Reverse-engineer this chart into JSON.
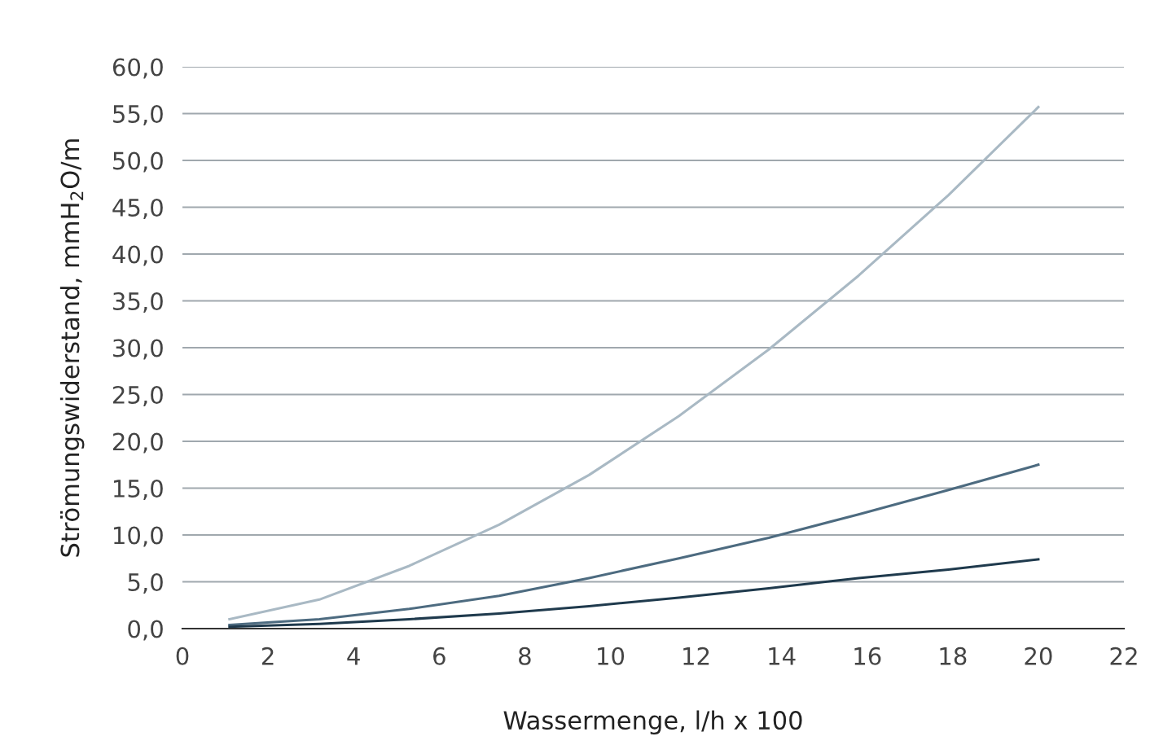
{
  "chart_data": {
    "type": "line",
    "xlabel": "Wassermenge, l/h x 100",
    "ylabel": "Strömungswiderstand, mmH$_{2}$O/m",
    "x": [
      1.1,
      3.2,
      5.3,
      7.4,
      9.5,
      11.6,
      13.7,
      15.8,
      17.9,
      20.0
    ],
    "series": [
      {
        "color": "#a9b9c4",
        "values": [
          1.0,
          3.1,
          6.7,
          11.1,
          16.4,
          22.7,
          29.8,
          37.7,
          46.3,
          55.7
        ]
      },
      {
        "color": "#4d6b80",
        "values": [
          0.4,
          1.0,
          2.1,
          3.5,
          5.4,
          7.5,
          9.7,
          12.2,
          14.8,
          17.5
        ]
      },
      {
        "color": "#1f3a4d",
        "values": [
          0.2,
          0.5,
          1.0,
          1.6,
          2.4,
          3.3,
          4.3,
          5.4,
          6.3,
          7.4
        ]
      }
    ],
    "xlim": [
      0,
      22
    ],
    "xticks": [
      0,
      2,
      4,
      6,
      8,
      10,
      12,
      14,
      16,
      18,
      20,
      22
    ],
    "ylim": [
      0,
      60
    ],
    "yticks": [
      {
        "value": 0,
        "label": "0,0"
      },
      {
        "value": 5,
        "label": "5,0"
      },
      {
        "value": 10,
        "label": "10,0"
      },
      {
        "value": 15,
        "label": "15,0"
      },
      {
        "value": 20,
        "label": "20,0"
      },
      {
        "value": 25,
        "label": "25,0"
      },
      {
        "value": 30,
        "label": "30,0"
      },
      {
        "value": 35,
        "label": "35,0"
      },
      {
        "value": 40,
        "label": "40,0"
      },
      {
        "value": 45,
        "label": "45,0"
      },
      {
        "value": 50,
        "label": "50,0"
      },
      {
        "value": 55,
        "label": "55,0"
      },
      {
        "value": 60,
        "label": "60,0"
      }
    ],
    "grid": "y",
    "legend": false,
    "marker": "none",
    "line_style": "solid"
  }
}
